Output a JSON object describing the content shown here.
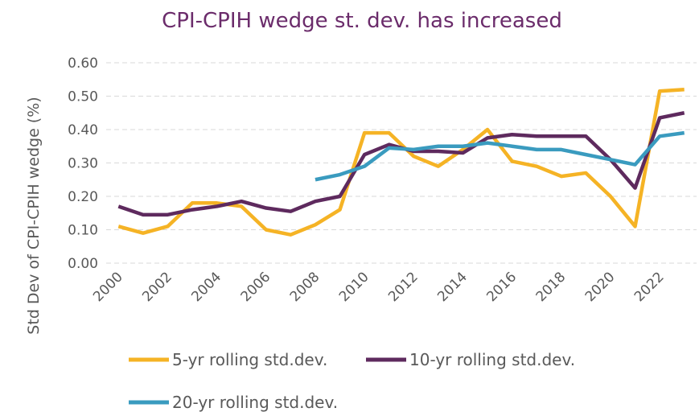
{
  "chart_data": {
    "type": "line",
    "title": "CPI-CPIH wedge st. dev. has increased",
    "y_label": "Std Dev of CPI-CPIH wedge (%)",
    "categories": [
      "2000",
      null,
      "2002",
      null,
      "2004",
      null,
      "2006",
      null,
      "2008",
      null,
      "2010",
      null,
      "2012",
      null,
      "2014",
      null,
      "2016",
      null,
      "2018",
      null,
      "2020",
      null,
      "2022",
      null
    ],
    "series": [
      {
        "name": "5-yr rolling std.dev.",
        "color": "#f5b325",
        "values": [
          0.11,
          0.09,
          0.11,
          0.18,
          0.18,
          0.17,
          0.1,
          0.085,
          0.115,
          0.16,
          0.39,
          0.39,
          0.32,
          0.29,
          0.34,
          0.4,
          0.305,
          0.29,
          0.26,
          0.27,
          0.2,
          0.11,
          0.515,
          0.52
        ]
      },
      {
        "name": "10-yr rolling std.dev.",
        "color": "#5e2a5e",
        "values": [
          0.17,
          0.145,
          0.145,
          0.16,
          0.17,
          0.185,
          0.165,
          0.155,
          0.185,
          0.2,
          0.325,
          0.355,
          0.335,
          0.335,
          0.33,
          0.375,
          0.385,
          0.38,
          0.38,
          0.38,
          0.31,
          0.225,
          0.435,
          0.45
        ]
      },
      {
        "name": "20-yr rolling std.dev.",
        "color": "#3a9bbf",
        "values": [
          null,
          null,
          null,
          null,
          null,
          null,
          null,
          null,
          0.25,
          0.265,
          0.29,
          0.345,
          0.34,
          0.35,
          0.35,
          0.36,
          0.35,
          0.34,
          0.34,
          0.325,
          0.31,
          0.295,
          0.38,
          0.39
        ]
      }
    ],
    "ylim": [
      0,
      0.6
    ],
    "yticks": [
      {
        "value": 0,
        "label": "0.00"
      },
      {
        "value": 0.1,
        "label": "0.10"
      },
      {
        "value": 0.2,
        "label": "0.20"
      },
      {
        "value": 0.3,
        "label": "0.30"
      },
      {
        "value": 0.4,
        "label": "0.40"
      },
      {
        "value": 0.5,
        "label": "0.50"
      },
      {
        "value": 0.6,
        "label": "0.60"
      }
    ],
    "grid": true
  }
}
